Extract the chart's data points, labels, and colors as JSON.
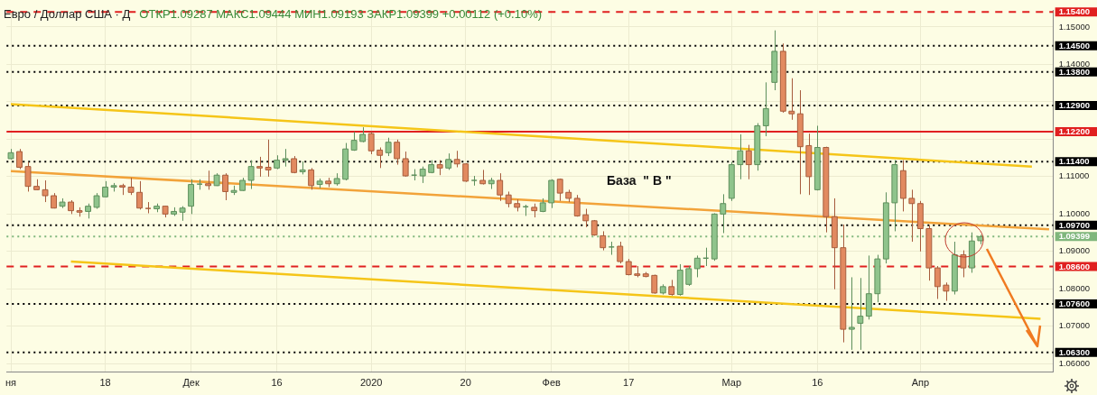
{
  "chart_data": {
    "type": "candlestick",
    "title": "Евро / Доллар США · Д",
    "subtitle": "ОТКР1.09287 МАКС1.09444 МИН1.09193 ЗАКР1.09399 +0.00112 (+0.10%)",
    "categories": [
      "ня",
      null,
      null,
      null,
      null,
      null,
      null,
      null,
      null,
      null,
      null,
      "18",
      null,
      null,
      null,
      null,
      null,
      null,
      null,
      null,
      null,
      "Дек",
      null,
      null,
      null,
      null,
      null,
      null,
      null,
      null,
      null,
      "16",
      null,
      null,
      null,
      null,
      null,
      null,
      null,
      null,
      null,
      null,
      "2020",
      null,
      null,
      null,
      null,
      null,
      null,
      null,
      null,
      null,
      null,
      "20",
      null,
      null,
      null,
      null,
      null,
      null,
      null,
      null,
      null,
      "Фев",
      null,
      null,
      null,
      null,
      null,
      null,
      null,
      null,
      "17",
      null,
      null,
      null,
      null,
      null,
      null,
      null,
      null,
      null,
      null,
      null,
      "Мар",
      null,
      null,
      null,
      null,
      null,
      null,
      null,
      null,
      null,
      "16",
      null,
      null,
      null,
      null,
      null,
      null,
      null,
      null,
      null,
      null,
      null,
      "Апр",
      null,
      null,
      null,
      null,
      null,
      null,
      null,
      null,
      null,
      null,
      null,
      null,
      null,
      null,
      null
    ],
    "ohlc": [
      [
        1.1148,
        1.1174,
        1.1146,
        1.1164
      ],
      [
        1.1167,
        1.1174,
        1.112,
        1.1125
      ],
      [
        1.1127,
        1.1139,
        1.106,
        1.1074
      ],
      [
        1.1074,
        1.1093,
        1.1064,
        1.1065
      ],
      [
        1.1065,
        1.109,
        1.1032,
        1.1049
      ],
      [
        1.1049,
        1.1056,
        1.1015,
        1.1016
      ],
      [
        1.1021,
        1.1042,
        1.1016,
        1.1032
      ],
      [
        1.1032,
        1.1037,
        1.1,
        1.1009
      ],
      [
        1.1009,
        1.1018,
        1.0993,
        1.1005
      ],
      [
        1.1007,
        1.1028,
        1.0988,
        1.1021
      ],
      [
        1.1018,
        1.1056,
        1.1014,
        1.1049
      ],
      [
        1.1046,
        1.1088,
        1.1045,
        1.1072
      ],
      [
        1.1072,
        1.1083,
        1.106,
        1.1076
      ],
      [
        1.1076,
        1.1081,
        1.1051,
        1.1072
      ],
      [
        1.1072,
        1.1097,
        1.1051,
        1.1058
      ],
      [
        1.1058,
        1.1088,
        1.1012,
        1.1016
      ],
      [
        1.1016,
        1.1032,
        1.1002,
        1.1014
      ],
      [
        1.1014,
        1.1028,
        1.1005,
        1.1021
      ],
      [
        1.1021,
        1.1021,
        1.0991,
        1.1
      ],
      [
        1.1,
        1.1018,
        1.0995,
        1.1007
      ],
      [
        1.1005,
        1.1021,
        1.0982,
        1.1016
      ],
      [
        1.1021,
        1.1093,
        1.1,
        1.1079
      ],
      [
        1.1079,
        1.1093,
        1.1065,
        1.1081
      ],
      [
        1.1081,
        1.1116,
        1.1065,
        1.1076
      ],
      [
        1.1076,
        1.1109,
        1.1075,
        1.1104
      ],
      [
        1.1104,
        1.1109,
        1.1037,
        1.106
      ],
      [
        1.1058,
        1.1076,
        1.1051,
        1.1063
      ],
      [
        1.1063,
        1.1097,
        1.1062,
        1.109
      ],
      [
        1.109,
        1.1144,
        1.1067,
        1.1127
      ],
      [
        1.1127,
        1.1153,
        1.11,
        1.1123
      ],
      [
        1.1125,
        1.1199,
        1.11,
        1.1118
      ],
      [
        1.1123,
        1.1157,
        1.112,
        1.1144
      ],
      [
        1.1144,
        1.1174,
        1.1127,
        1.1148
      ],
      [
        1.1148,
        1.1155,
        1.1109,
        1.1111
      ],
      [
        1.1113,
        1.1141,
        1.1106,
        1.1118
      ],
      [
        1.1118,
        1.1123,
        1.1065,
        1.1076
      ],
      [
        1.1079,
        1.1095,
        1.1069,
        1.1088
      ],
      [
        1.1088,
        1.1097,
        1.1072,
        1.1081
      ],
      [
        1.1081,
        1.1109,
        1.1076,
        1.1095
      ],
      [
        1.1093,
        1.119,
        1.109,
        1.1174
      ],
      [
        1.1171,
        1.122,
        1.1169,
        1.1197
      ],
      [
        1.1194,
        1.1232,
        1.1192,
        1.1213
      ],
      [
        1.1215,
        1.122,
        1.116,
        1.1169
      ],
      [
        1.1171,
        1.1178,
        1.1123,
        1.1157
      ],
      [
        1.1164,
        1.1204,
        1.1155,
        1.1192
      ],
      [
        1.1192,
        1.1199,
        1.1132,
        1.1148
      ],
      [
        1.1148,
        1.1167,
        1.11,
        1.1102
      ],
      [
        1.1104,
        1.112,
        1.109,
        1.1104
      ],
      [
        1.1102,
        1.1127,
        1.1083,
        1.112
      ],
      [
        1.1111,
        1.1144,
        1.1109,
        1.1132
      ],
      [
        1.1132,
        1.1144,
        1.1104,
        1.1123
      ],
      [
        1.1123,
        1.1162,
        1.1118,
        1.1146
      ],
      [
        1.1146,
        1.1169,
        1.1125,
        1.1134
      ],
      [
        1.1134,
        1.1136,
        1.1086,
        1.1088
      ],
      [
        1.109,
        1.1102,
        1.1076,
        1.109
      ],
      [
        1.109,
        1.1118,
        1.1079,
        1.1081
      ],
      [
        1.1081,
        1.1097,
        1.1067,
        1.109
      ],
      [
        1.109,
        1.1109,
        1.1035,
        1.1051
      ],
      [
        1.1051,
        1.106,
        1.1018,
        1.1028
      ],
      [
        1.1028,
        1.1039,
        1.1007,
        1.1018
      ],
      [
        1.1018,
        1.1025,
        1.0995,
        1.1021
      ],
      [
        1.1018,
        1.1028,
        1.0991,
        1.1009
      ],
      [
        1.1007,
        1.1042,
        1.1005,
        1.103
      ],
      [
        1.103,
        1.1093,
        1.1016,
        1.109
      ],
      [
        1.1093,
        1.1095,
        1.1035,
        1.1056
      ],
      [
        1.1058,
        1.1065,
        1.1032,
        1.1042
      ],
      [
        1.1042,
        1.1051,
        1.0993,
        1.0995
      ],
      [
        1.0998,
        1.1014,
        1.0965,
        1.0982
      ],
      [
        1.0982,
        1.0984,
        1.0942,
        1.0944
      ],
      [
        1.0942,
        1.0954,
        1.0903,
        1.091
      ],
      [
        1.0912,
        1.0926,
        1.0891,
        1.0912
      ],
      [
        1.0914,
        1.0926,
        1.0868,
        1.0873
      ],
      [
        1.0873,
        1.088,
        1.0836,
        1.0838
      ],
      [
        1.084,
        1.0861,
        1.0831,
        1.0836
      ],
      [
        1.084,
        1.0845,
        1.0831,
        1.0833
      ],
      [
        1.0836,
        1.0838,
        1.0787,
        1.0789
      ],
      [
        1.0789,
        1.0812,
        1.0785,
        1.0806
      ],
      [
        1.0806,
        1.0824,
        1.0782,
        1.0785
      ],
      [
        1.0785,
        1.0866,
        1.0782,
        1.085
      ],
      [
        1.0812,
        1.0861,
        1.0808,
        1.0854
      ],
      [
        1.0854,
        1.0889,
        1.0831,
        1.0882
      ],
      [
        1.0882,
        1.091,
        1.0861,
        1.0882
      ],
      [
        1.088,
        1.1002,
        1.0875,
        1.1
      ],
      [
        1.1,
        1.1053,
        1.0949,
        1.1028
      ],
      [
        1.1042,
        1.1139,
        1.1035,
        1.1132
      ],
      [
        1.1132,
        1.1213,
        1.1093,
        1.1169
      ],
      [
        1.1169,
        1.1185,
        1.1093,
        1.1132
      ],
      [
        1.1132,
        1.1243,
        1.1116,
        1.1236
      ],
      [
        1.1236,
        1.1352,
        1.1208,
        1.1282
      ],
      [
        1.1352,
        1.1491,
        1.1331,
        1.1435
      ],
      [
        1.1435,
        1.1456,
        1.1271,
        1.1275
      ],
      [
        1.1275,
        1.1363,
        1.1252,
        1.1268
      ],
      [
        1.1268,
        1.1331,
        1.1053,
        1.118
      ],
      [
        1.1183,
        1.1215,
        1.1051,
        1.11
      ],
      [
        1.1065,
        1.1236,
        1.1063,
        1.1178
      ],
      [
        1.1178,
        1.118,
        1.0951,
        1.0993
      ],
      [
        1.0993,
        1.1042,
        1.0799,
        1.091
      ],
      [
        1.091,
        1.0972,
        1.0657,
        1.0692
      ],
      [
        1.0692,
        1.0831,
        1.0637,
        1.0697
      ],
      [
        1.0708,
        1.0829,
        1.0637,
        1.0727
      ],
      [
        1.0727,
        1.0889,
        1.0718,
        1.0787
      ],
      [
        1.0787,
        1.0891,
        1.0764,
        1.088
      ],
      [
        1.088,
        1.1058,
        1.0868,
        1.103
      ],
      [
        1.103,
        1.1144,
        1.0954,
        1.1132
      ],
      [
        1.1116,
        1.1144,
        1.1007,
        1.1042
      ],
      [
        1.1042,
        1.1065,
        1.0926,
        1.1028
      ],
      [
        1.1028,
        1.1035,
        1.09,
        1.0961
      ],
      [
        1.0961,
        1.097,
        1.0822,
        1.0856
      ],
      [
        1.0856,
        1.0861,
        1.0773,
        1.0806
      ],
      [
        1.081,
        1.0817,
        1.0768,
        1.0794
      ],
      [
        1.0794,
        1.0926,
        1.0785,
        1.0891
      ],
      [
        1.0891,
        1.0903,
        1.0831,
        1.0856
      ],
      [
        1.0856,
        1.0951,
        1.0843,
        1.0928
      ],
      [
        1.09287,
        1.09444,
        1.09193,
        1.09399
      ],
      null,
      null,
      null,
      null,
      null,
      null,
      null,
      null
    ],
    "series": [
      {
        "type": "line",
        "color": "#f5c518",
        "values": [
          1.1294,
          null,
          null,
          null,
          null,
          null,
          null,
          null,
          null,
          null,
          null,
          null,
          null,
          null,
          null,
          null,
          null,
          null,
          null,
          null,
          null,
          null,
          null,
          null,
          null,
          null,
          null,
          null,
          null,
          null,
          null,
          null,
          null,
          null,
          null,
          null,
          null,
          null,
          null,
          null,
          null,
          null,
          null,
          null,
          null,
          null,
          null,
          null,
          null,
          null,
          null,
          null,
          null,
          null,
          null,
          null,
          null,
          null,
          null,
          null,
          null,
          null,
          null,
          null,
          null,
          null,
          null,
          null,
          null,
          null,
          null,
          null,
          null,
          null,
          null,
          null,
          null,
          null,
          null,
          null,
          null,
          null,
          null,
          null,
          null,
          null,
          null,
          null,
          null,
          null,
          null,
          null,
          null,
          null,
          null,
          null,
          null,
          null,
          null,
          null,
          null,
          null,
          null,
          null,
          null,
          null,
          null,
          null,
          null,
          null,
          null,
          null,
          null,
          null,
          null,
          null,
          null,
          null,
          null,
          1.1127,
          null,
          null
        ]
      },
      {
        "type": "line",
        "color": "#f2a33a",
        "values": [
          1.1115,
          null,
          null,
          null,
          null,
          null,
          null,
          null,
          null,
          null,
          null,
          null,
          null,
          null,
          null,
          null,
          null,
          null,
          null,
          null,
          null,
          null,
          null,
          null,
          null,
          null,
          null,
          null,
          null,
          null,
          null,
          null,
          null,
          null,
          null,
          null,
          null,
          null,
          null,
          null,
          null,
          null,
          null,
          null,
          null,
          null,
          null,
          null,
          null,
          null,
          null,
          null,
          null,
          null,
          null,
          null,
          null,
          null,
          null,
          null,
          null,
          null,
          null,
          null,
          null,
          null,
          null,
          null,
          null,
          null,
          null,
          null,
          null,
          null,
          null,
          null,
          null,
          null,
          null,
          null,
          null,
          null,
          null,
          null,
          null,
          null,
          null,
          null,
          null,
          null,
          null,
          null,
          null,
          null,
          null,
          null,
          null,
          null,
          null,
          null,
          null,
          null,
          null,
          null,
          null,
          null,
          null,
          null,
          null,
          null,
          null,
          null,
          null,
          null,
          null,
          null,
          null,
          null,
          null,
          null,
          null,
          1.0959
        ]
      },
      {
        "type": "line",
        "color": "#f5c518",
        "values": [
          null,
          null,
          null,
          null,
          null,
          null,
          null,
          1.0873,
          null,
          null,
          null,
          null,
          null,
          null,
          null,
          null,
          null,
          null,
          null,
          null,
          null,
          null,
          null,
          null,
          null,
          null,
          null,
          null,
          null,
          null,
          null,
          null,
          null,
          null,
          null,
          null,
          null,
          null,
          null,
          null,
          null,
          null,
          null,
          null,
          null,
          null,
          null,
          null,
          null,
          null,
          null,
          null,
          null,
          null,
          null,
          null,
          null,
          null,
          null,
          null,
          null,
          null,
          null,
          null,
          null,
          null,
          null,
          null,
          null,
          null,
          null,
          null,
          null,
          null,
          null,
          null,
          null,
          null,
          null,
          null,
          null,
          null,
          null,
          null,
          null,
          null,
          null,
          null,
          null,
          null,
          null,
          null,
          null,
          null,
          null,
          null,
          null,
          null,
          null,
          null,
          null,
          null,
          null,
          null,
          null,
          null,
          null,
          null,
          null,
          null,
          null,
          null,
          null,
          null,
          null,
          null,
          null,
          null,
          null,
          null,
          1.072,
          null
        ]
      }
    ],
    "ylim": [
      1.0577,
      1.1544
    ],
    "yticks": [
      {
        "value": 1.06,
        "label": "1.06000"
      },
      {
        "value": 1.07,
        "label": "1.07000"
      },
      {
        "value": 1.08,
        "label": "1.08000"
      },
      {
        "value": 1.09,
        "label": "1.09000"
      },
      {
        "value": 1.1,
        "label": "1.10000"
      },
      {
        "value": 1.11,
        "label": "1.11000"
      },
      {
        "value": 1.12,
        "label": null
      },
      {
        "value": 1.13,
        "label": null
      },
      {
        "value": 1.14,
        "label": "1.14000"
      },
      {
        "value": 1.15,
        "label": "1.15000"
      }
    ],
    "grid": true,
    "ref_lines": [
      {
        "axis": "y",
        "value": 1.154,
        "label": "1.15400",
        "color": "#e02020",
        "line_style": "dashed"
      },
      {
        "axis": "y",
        "value": 1.145,
        "label": "1.14500",
        "color": "#000000",
        "line_style": "dotted"
      },
      {
        "axis": "y",
        "value": 1.138,
        "label": "1.13800",
        "color": "#000000",
        "line_style": "dotted"
      },
      {
        "axis": "y",
        "value": 1.129,
        "label": "1.12900",
        "color": "#000000",
        "line_style": "dotted"
      },
      {
        "axis": "y",
        "value": 1.122,
        "label": "1.12200",
        "color": "#e02020",
        "line_style": "solid"
      },
      {
        "axis": "y",
        "value": 1.114,
        "label": "1.11400",
        "color": "#000000",
        "line_style": "dotted"
      },
      {
        "axis": "y",
        "value": 1.097,
        "label": "1.09700",
        "color": "#000000",
        "line_style": "dotted"
      },
      {
        "axis": "y",
        "value": 1.09399,
        "label": "1.09399",
        "color": "#7fb67c",
        "line_style": "dotted"
      },
      {
        "axis": "y",
        "value": 1.086,
        "label": "1.08600",
        "color": "#e02020",
        "line_style": "dashed"
      },
      {
        "axis": "y",
        "value": 1.076,
        "label": "1.07600",
        "color": "#000000",
        "line_style": "dotted"
      },
      {
        "axis": "y",
        "value": 1.063,
        "label": "1.06300",
        "color": "#000000",
        "line_style": "dotted"
      }
    ],
    "annotations": [
      "База  \" В \""
    ]
  }
}
